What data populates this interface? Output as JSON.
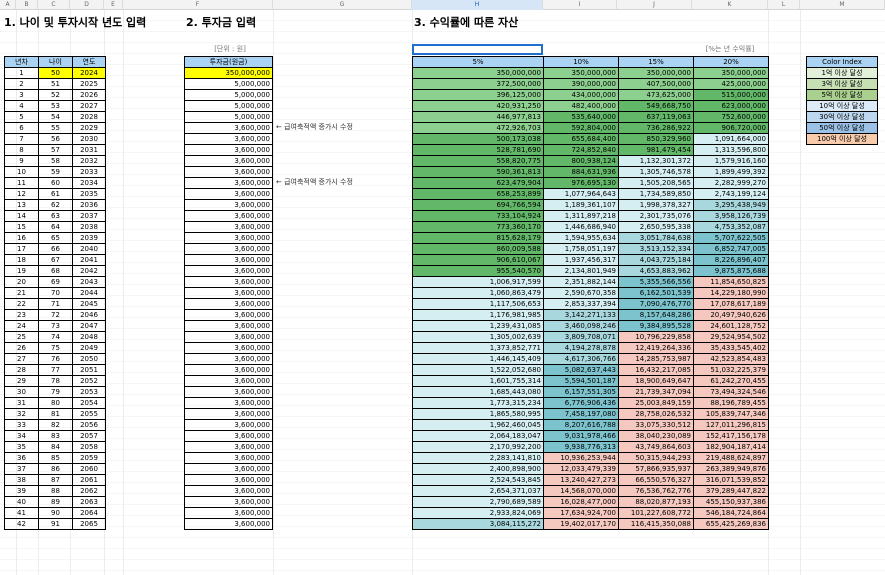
{
  "column_headers": [
    "A",
    "B",
    "C",
    "D",
    "E",
    "F",
    "G",
    "H",
    "I",
    "J",
    "K",
    "L",
    "M"
  ],
  "selected_column": "H",
  "sections": {
    "s1_title": "1. 나이 및 투자시작 년도 입력",
    "s2_title": "2. 투자금 입력",
    "s3_title": "3. 수익률에 따른 자산",
    "s2_unit": "[단위 : 원]",
    "s3_unit": "[%는 년 수익률]"
  },
  "table1": {
    "headers": [
      "년차",
      "나이",
      "연도"
    ],
    "years": [
      1,
      2,
      3,
      4,
      5,
      6,
      7,
      8,
      9,
      10,
      11,
      12,
      13,
      14,
      15,
      16,
      17,
      18,
      19,
      20,
      21,
      22,
      23,
      24,
      25,
      26,
      27,
      28,
      29,
      30,
      31,
      32,
      33,
      34,
      35,
      36,
      37,
      38,
      39,
      40,
      41,
      42
    ],
    "ages": [
      50,
      51,
      52,
      53,
      54,
      55,
      56,
      57,
      58,
      59,
      60,
      61,
      62,
      63,
      64,
      65,
      66,
      67,
      68,
      69,
      70,
      71,
      72,
      73,
      74,
      75,
      76,
      77,
      78,
      79,
      80,
      81,
      82,
      83,
      84,
      85,
      86,
      87,
      88,
      89,
      90,
      91
    ],
    "calendar_years": [
      2024,
      2025,
      2026,
      2027,
      2028,
      2029,
      2030,
      2031,
      2032,
      2033,
      2034,
      2035,
      2036,
      2037,
      2038,
      2039,
      2040,
      2041,
      2042,
      2043,
      2044,
      2045,
      2046,
      2047,
      2048,
      2049,
      2050,
      2051,
      2052,
      2053,
      2054,
      2055,
      2056,
      2057,
      2058,
      2059,
      2060,
      2061,
      2062,
      2063,
      2064,
      2065
    ]
  },
  "table2": {
    "header": "투자금(원금)",
    "amounts": [
      "350,000,000",
      "5,000,000",
      "5,000,000",
      "5,000,000",
      "5,000,000",
      "3,600,000",
      "3,600,000",
      "3,600,000",
      "3,600,000",
      "3,600,000",
      "3,600,000",
      "3,600,000",
      "3,600,000",
      "3,600,000",
      "3,600,000",
      "3,600,000",
      "3,600,000",
      "3,600,000",
      "3,600,000",
      "3,600,000",
      "3,600,000",
      "3,600,000",
      "3,600,000",
      "3,600,000",
      "3,600,000",
      "3,600,000",
      "3,600,000",
      "3,600,000",
      "3,600,000",
      "3,600,000",
      "3,600,000",
      "3,600,000",
      "3,600,000",
      "3,600,000",
      "3,600,000",
      "3,600,000",
      "3,600,000",
      "3,600,000",
      "3,600,000",
      "3,600,000",
      "3,600,000",
      "3,600,000"
    ],
    "notes": [
      {
        "row": 6,
        "text": "← 급여축적액 증가시 수정"
      },
      {
        "row": 11,
        "text": "← 급여축적액 증가시 수정"
      }
    ]
  },
  "table3": {
    "headers": [
      "5%",
      "10%",
      "15%",
      "20%"
    ],
    "rows": [
      [
        "350,000,000",
        "350,000,000",
        "350,000,000",
        "350,000,000"
      ],
      [
        "372,500,000",
        "390,000,000",
        "407,500,000",
        "425,000,000"
      ],
      [
        "396,125,000",
        "434,000,000",
        "473,625,000",
        "515,000,000"
      ],
      [
        "420,931,250",
        "482,400,000",
        "549,668,750",
        "623,000,000"
      ],
      [
        "446,977,813",
        "535,640,000",
        "637,119,063",
        "752,600,000"
      ],
      [
        "472,926,703",
        "592,804,000",
        "736,286,922",
        "906,720,000"
      ],
      [
        "500,173,038",
        "655,684,400",
        "850,329,960",
        "1,091,664,000"
      ],
      [
        "528,781,690",
        "724,852,840",
        "981,479,454",
        "1,313,596,800"
      ],
      [
        "558,820,775",
        "800,938,124",
        "1,132,301,372",
        "1,579,916,160"
      ],
      [
        "590,361,813",
        "884,631,936",
        "1,305,746,578",
        "1,899,499,392"
      ],
      [
        "623,479,904",
        "976,695,130",
        "1,505,208,565",
        "2,282,999,270"
      ],
      [
        "658,253,899",
        "1,077,964,643",
        "1,734,589,850",
        "2,743,199,124"
      ],
      [
        "694,766,594",
        "1,189,361,107",
        "1,998,378,327",
        "3,295,438,949"
      ],
      [
        "733,104,924",
        "1,311,897,218",
        "2,301,735,076",
        "3,958,126,739"
      ],
      [
        "773,360,170",
        "1,446,686,940",
        "2,650,595,338",
        "4,753,352,087"
      ],
      [
        "815,628,179",
        "1,594,955,634",
        "3,051,784,638",
        "5,707,622,505"
      ],
      [
        "860,009,588",
        "1,758,051,197",
        "3,513,152,334",
        "6,852,747,005"
      ],
      [
        "906,610,067",
        "1,937,456,317",
        "4,043,725,184",
        "8,226,896,407"
      ],
      [
        "955,540,570",
        "2,134,801,949",
        "4,653,883,962",
        "9,875,875,688"
      ],
      [
        "1,006,917,599",
        "2,351,882,144",
        "5,355,566,556",
        "11,854,650,825"
      ],
      [
        "1,060,863,479",
        "2,590,670,358",
        "6,162,501,539",
        "14,229,180,990"
      ],
      [
        "1,117,506,653",
        "2,853,337,394",
        "7,090,476,770",
        "17,078,617,189"
      ],
      [
        "1,176,981,985",
        "3,142,271,133",
        "8,157,648,286",
        "20,497,940,626"
      ],
      [
        "1,239,431,085",
        "3,460,098,246",
        "9,384,895,528",
        "24,601,128,752"
      ],
      [
        "1,305,002,639",
        "3,809,708,071",
        "10,796,229,858",
        "29,524,954,502"
      ],
      [
        "1,373,852,771",
        "4,194,278,878",
        "12,419,264,336",
        "35,433,545,402"
      ],
      [
        "1,446,145,409",
        "4,617,306,766",
        "14,285,753,987",
        "42,523,854,483"
      ],
      [
        "1,522,052,680",
        "5,082,637,443",
        "16,432,217,085",
        "51,032,225,379"
      ],
      [
        "1,601,755,314",
        "5,594,501,187",
        "18,900,649,647",
        "61,242,270,455"
      ],
      [
        "1,685,443,080",
        "6,157,551,305",
        "21,739,347,094",
        "73,494,324,546"
      ],
      [
        "1,773,315,234",
        "6,776,906,436",
        "25,003,849,159",
        "88,196,789,455"
      ],
      [
        "1,865,580,995",
        "7,458,197,080",
        "28,758,026,532",
        "105,839,747,346"
      ],
      [
        "1,962,460,045",
        "8,207,616,788",
        "33,075,330,512",
        "127,011,296,815"
      ],
      [
        "2,064,183,047",
        "9,031,978,466",
        "38,040,230,089",
        "152,417,156,178"
      ],
      [
        "2,170,992,200",
        "9,938,776,313",
        "43,749,864,603",
        "182,904,187,414"
      ],
      [
        "2,283,141,810",
        "10,936,253,944",
        "50,315,944,293",
        "219,488,624,897"
      ],
      [
        "2,400,898,900",
        "12,033,479,339",
        "57,866,935,937",
        "263,389,949,876"
      ],
      [
        "2,524,543,845",
        "13,240,427,273",
        "66,550,576,327",
        "316,071,539,852"
      ],
      [
        "2,654,371,037",
        "14,568,070,000",
        "76,536,762,776",
        "379,289,447,822"
      ],
      [
        "2,790,689,589",
        "16,028,477,000",
        "88,020,877,193",
        "455,150,937,386"
      ],
      [
        "2,933,824,069",
        "17,634,924,700",
        "101,227,608,772",
        "546,184,724,864"
      ],
      [
        "3,084,115,272",
        "19,402,017,170",
        "116,415,350,088",
        "655,425,269,836"
      ]
    ]
  },
  "color_index": {
    "header": "Color Index",
    "items": [
      {
        "label": "1억 이상 달성",
        "color": "#e2f0d9"
      },
      {
        "label": "3억 이상 달성",
        "color": "#c6e0b4"
      },
      {
        "label": "5억 이상 달성",
        "color": "#a9d08e"
      },
      {
        "label": "10억 이상 달성",
        "color": "#ddebf7"
      },
      {
        "label": "30억 이상 달성",
        "color": "#bdd7ee"
      },
      {
        "label": "50억 이상 달성",
        "color": "#9bc2e6"
      },
      {
        "label": "100억 이상 달성",
        "color": "#f8cbad"
      }
    ]
  },
  "fill_colors": {
    "green_3": "#a9d08e",
    "green_5": "#8ccf8e",
    "green_10": "#62b868",
    "teal_10": "#d5eef2",
    "teal_30": "#a8d8de",
    "teal_50": "#7cc3cd",
    "pink_100": "#f4c7bf",
    "header_blue": "#a9d2f3",
    "input_yellow": "#ffff00"
  }
}
